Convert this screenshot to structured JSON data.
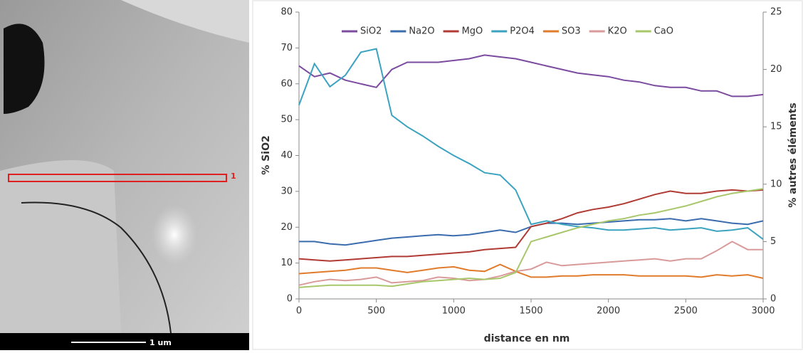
{
  "image": {
    "region_label": "1",
    "scale_label": "1 um"
  },
  "chart_data": {
    "type": "line",
    "x_label": "distance en nm",
    "y_label": "% SiO2",
    "y2_label": "% autres éléments",
    "x": [
      0,
      100,
      200,
      300,
      400,
      500,
      600,
      700,
      800,
      900,
      1000,
      1100,
      1200,
      1300,
      1400,
      1500,
      1600,
      1700,
      1800,
      1900,
      2000,
      2100,
      2200,
      2300,
      2400,
      2500,
      2600,
      2700,
      2800,
      2900,
      3000
    ],
    "xlim": [
      0,
      3000
    ],
    "xticks": [
      0,
      500,
      1000,
      1500,
      2000,
      2500,
      3000
    ],
    "ylim": [
      0,
      80
    ],
    "yticks": [
      0,
      10,
      20,
      30,
      40,
      50,
      60,
      70,
      80
    ],
    "y2lim": [
      0,
      25
    ],
    "y2ticks": [
      0,
      5,
      10,
      15,
      20,
      25
    ],
    "grid": false,
    "legend": "top",
    "series": [
      {
        "name": "SiO2",
        "color": "#7a4b9e",
        "values": [
          65,
          62,
          63,
          61,
          60,
          59,
          64,
          66,
          66,
          66,
          66.5,
          67,
          68,
          67.5,
          67,
          66,
          65,
          64,
          63,
          62.5,
          62,
          61,
          60.5,
          59.5,
          59,
          59,
          58,
          58,
          56.5,
          56.5,
          57
        ]
      },
      {
        "name": "Na2O",
        "color": "#3a6cae",
        "axis": "y2",
        "values": [
          5.0,
          5.0,
          4.8,
          4.7,
          4.9,
          5.1,
          5.3,
          5.4,
          5.5,
          5.6,
          5.5,
          5.6,
          5.8,
          6.0,
          5.8,
          6.3,
          6.6,
          6.6,
          6.5,
          6.6,
          6.7,
          6.8,
          6.9,
          6.9,
          7.0,
          6.8,
          7.0,
          6.8,
          6.6,
          6.5,
          6.8
        ]
      },
      {
        "name": "MgO",
        "color": "#b03a34",
        "axis": "y2",
        "values": [
          3.5,
          3.4,
          3.3,
          3.4,
          3.5,
          3.6,
          3.7,
          3.7,
          3.8,
          3.9,
          4.0,
          4.1,
          4.3,
          4.4,
          4.5,
          6.3,
          6.6,
          7.0,
          7.5,
          7.8,
          8.0,
          8.3,
          8.7,
          9.1,
          9.4,
          9.2,
          9.2,
          9.4,
          9.5,
          9.4,
          9.5
        ]
      },
      {
        "name": "P2O4",
        "color": "#3ba3c0",
        "axis": "y2",
        "values": [
          16.9,
          20.5,
          18.5,
          19.5,
          21.5,
          21.8,
          16,
          15,
          14.2,
          13.3,
          12.5,
          11.8,
          11.0,
          10.8,
          9.5,
          6.5,
          6.8,
          6.5,
          6.3,
          6.2,
          6.0,
          6.0,
          6.1,
          6.2,
          6.0,
          6.1,
          6.2,
          5.9,
          6.0,
          6.2,
          5.2
        ]
      },
      {
        "name": "SO3",
        "color": "#e07b2c",
        "axis": "y2",
        "values": [
          2.2,
          2.3,
          2.4,
          2.5,
          2.7,
          2.7,
          2.5,
          2.3,
          2.5,
          2.7,
          2.8,
          2.5,
          2.4,
          3.0,
          2.4,
          1.9,
          1.9,
          2.0,
          2.0,
          2.1,
          2.1,
          2.1,
          2.0,
          2.0,
          2.0,
          2.0,
          1.9,
          2.1,
          2.0,
          2.1,
          1.8
        ]
      },
      {
        "name": "K2O",
        "color": "#d99a9a",
        "axis": "y2",
        "values": [
          1.2,
          1.5,
          1.7,
          1.6,
          1.7,
          1.9,
          1.4,
          1.5,
          1.6,
          1.9,
          1.8,
          1.6,
          1.7,
          2.0,
          2.4,
          2.6,
          3.2,
          2.9,
          3.0,
          3.1,
          3.2,
          3.3,
          3.4,
          3.5,
          3.3,
          3.5,
          3.5,
          4.2,
          5.0,
          4.3,
          4.3
        ]
      },
      {
        "name": "CaO",
        "color": "#a8c76a",
        "axis": "y2",
        "values": [
          1.0,
          1.1,
          1.2,
          1.2,
          1.2,
          1.2,
          1.1,
          1.3,
          1.5,
          1.6,
          1.7,
          1.8,
          1.7,
          1.8,
          2.3,
          5.0,
          5.4,
          5.8,
          6.2,
          6.5,
          6.8,
          7.0,
          7.3,
          7.5,
          7.8,
          8.1,
          8.5,
          8.9,
          9.2,
          9.4,
          9.6
        ]
      }
    ]
  }
}
